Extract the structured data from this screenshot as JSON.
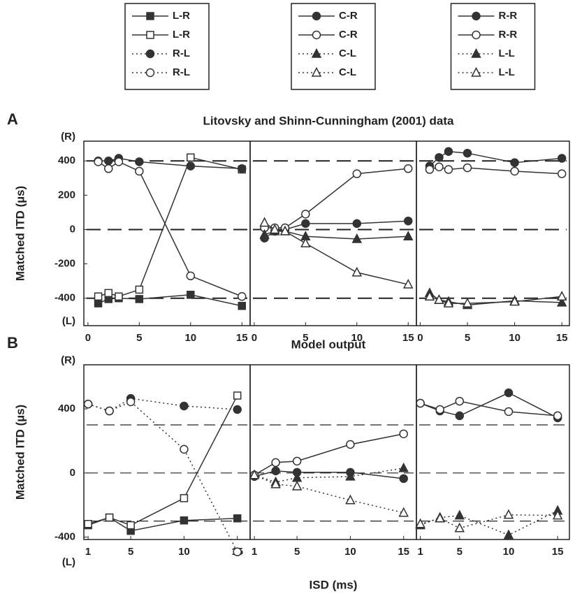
{
  "chart_data": [
    {
      "type": "line",
      "label": "A",
      "title": "Litovsky and Shinn-Cunningham (2001) data",
      "ylabel": "Matched ITD (µs)",
      "yend_labels": [
        "(R)",
        "(L)"
      ],
      "color": "#333",
      "x": [
        1,
        2,
        3,
        5,
        10,
        15
      ],
      "xlim": [
        -0.4,
        15.8
      ],
      "xticks": [
        0,
        5,
        10,
        15
      ],
      "ylim": [
        -560,
        515
      ],
      "yticks": [
        -400,
        -200,
        0,
        200,
        400
      ],
      "hlines": [
        -400,
        0,
        400
      ],
      "series": [
        {
          "marker": "square",
          "filled": true,
          "line": "solid",
          "values": [
            -430,
            -405,
            -400,
            -405,
            -380,
            -445
          ]
        },
        {
          "marker": "square",
          "filled": false,
          "line": "solid",
          "values": [
            -390,
            -370,
            -390,
            -350,
            420,
            350
          ]
        },
        {
          "marker": "circle",
          "filled": true,
          "line": "solid",
          "values": [
            400,
            400,
            415,
            395,
            370,
            355
          ]
        },
        {
          "marker": "circle",
          "filled": false,
          "line": "solid",
          "values": [
            395,
            355,
            395,
            340,
            -270,
            -390
          ]
        }
      ]
    },
    {
      "type": "line",
      "color": "#333",
      "x": [
        1,
        2,
        3,
        5,
        10,
        15
      ],
      "xlim": [
        -0.4,
        15.8
      ],
      "xticks": [
        0,
        5,
        10,
        15
      ],
      "ylim": [
        -560,
        515
      ],
      "hlines": [
        -400,
        0,
        400
      ],
      "series": [
        {
          "marker": "circle",
          "filled": true,
          "line": "solid",
          "values": [
            -50,
            -10,
            0,
            35,
            35,
            50
          ]
        },
        {
          "marker": "circle",
          "filled": false,
          "line": "solid",
          "values": [
            10,
            10,
            10,
            90,
            325,
            355
          ]
        },
        {
          "marker": "triangle",
          "filled": true,
          "line": "solid",
          "values": [
            -30,
            -10,
            -10,
            -40,
            -55,
            -40
          ]
        },
        {
          "marker": "triangle",
          "filled": false,
          "line": "solid",
          "values": [
            40,
            0,
            -10,
            -80,
            -250,
            -320
          ]
        }
      ]
    },
    {
      "type": "line",
      "color": "#333",
      "x": [
        1,
        2,
        3,
        5,
        10,
        15
      ],
      "xlim": [
        -0.4,
        15.8
      ],
      "xticks": [
        0,
        5,
        10,
        15
      ],
      "ylim": [
        -560,
        515
      ],
      "hlines": [
        -400,
        0,
        400
      ],
      "series": [
        {
          "marker": "circle",
          "filled": true,
          "line": "solid",
          "values": [
            370,
            420,
            455,
            445,
            390,
            415
          ]
        },
        {
          "marker": "circle",
          "filled": false,
          "line": "solid",
          "values": [
            350,
            365,
            350,
            360,
            340,
            325
          ]
        },
        {
          "marker": "triangle",
          "filled": true,
          "line": "solid",
          "values": [
            -370,
            -410,
            -420,
            -440,
            -415,
            -425
          ]
        },
        {
          "marker": "triangle",
          "filled": false,
          "line": "solid",
          "values": [
            -390,
            -410,
            -430,
            -430,
            -420,
            -390
          ]
        }
      ]
    },
    {
      "type": "line",
      "label": "B",
      "title": "Model output",
      "ylabel": "Matched ITD (µs)",
      "yend_labels": [
        "(R)",
        "(L)"
      ],
      "color": "#333",
      "x": [
        1,
        3,
        5,
        10,
        15
      ],
      "xlim": [
        0.6,
        16.2
      ],
      "xticks": [
        1,
        5,
        10,
        15
      ],
      "ylim": [
        -415,
        675
      ],
      "yticks": [
        -400,
        0,
        400
      ],
      "hlines": [
        -300,
        0,
        300
      ],
      "series": [
        {
          "name": "L-R",
          "marker": "square",
          "filled": true,
          "line": "solid",
          "values": [
            -326,
            -278,
            -361,
            -296,
            -283
          ]
        },
        {
          "name": "L-R",
          "marker": "square",
          "filled": false,
          "line": "solid",
          "values": [
            -318,
            -278,
            -326,
            -157,
            483
          ]
        },
        {
          "name": "R-L",
          "marker": "circle",
          "filled": true,
          "line": "dotted",
          "values": [
            430,
            387,
            465,
            418,
            396
          ]
        },
        {
          "name": "R-L",
          "marker": "circle",
          "filled": false,
          "line": "dotted",
          "values": [
            430,
            387,
            444,
            148,
            -492
          ]
        }
      ]
    },
    {
      "type": "line",
      "xlabel": "ISD (ms)",
      "color": "#333",
      "x": [
        1,
        3,
        5,
        10,
        15
      ],
      "xlim": [
        0.6,
        16.2
      ],
      "xticks": [
        1,
        5,
        10,
        15
      ],
      "ylim": [
        -415,
        675
      ],
      "hlines": [
        -300,
        0,
        300
      ],
      "series": [
        {
          "name": "C-R",
          "marker": "circle",
          "filled": true,
          "line": "solid",
          "values": [
            -22,
            13,
            4,
            4,
            -35
          ]
        },
        {
          "name": "C-R",
          "marker": "circle",
          "filled": false,
          "line": "solid",
          "values": [
            -13,
            65,
            74,
            178,
            244
          ]
        },
        {
          "name": "C-L",
          "marker": "triangle",
          "filled": true,
          "line": "dotted",
          "values": [
            -13,
            -57,
            -30,
            -22,
            30
          ]
        },
        {
          "name": "C-L",
          "marker": "triangle",
          "filled": false,
          "line": "dotted",
          "values": [
            -13,
            -70,
            -83,
            -170,
            -248
          ]
        }
      ]
    },
    {
      "type": "line",
      "color": "#333",
      "x": [
        1,
        3,
        5,
        10,
        15
      ],
      "xlim": [
        0.6,
        16.2
      ],
      "xticks": [
        1,
        5,
        10,
        15
      ],
      "ylim": [
        -415,
        675
      ],
      "hlines": [
        -300,
        0,
        300
      ],
      "series": [
        {
          "name": "R-R",
          "marker": "circle",
          "filled": true,
          "line": "solid",
          "values": [
            435,
            387,
            357,
            500,
            344
          ]
        },
        {
          "name": "R-R",
          "marker": "circle",
          "filled": false,
          "line": "solid",
          "values": [
            435,
            396,
            448,
            383,
            357
          ]
        },
        {
          "name": "L-L",
          "marker": "triangle",
          "filled": true,
          "line": "dotted",
          "values": [
            -326,
            -278,
            -265,
            -387,
            -235
          ]
        },
        {
          "name": "L-L",
          "marker": "triangle",
          "filled": false,
          "line": "dotted",
          "values": [
            -318,
            -283,
            -344,
            -261,
            -265
          ]
        }
      ]
    }
  ]
}
